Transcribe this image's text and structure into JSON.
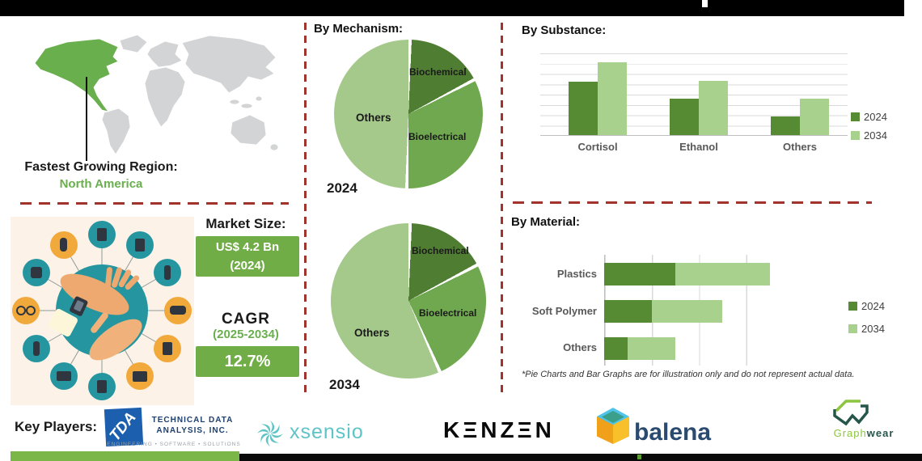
{
  "region": {
    "label": "Fastest Growing Region:",
    "value": "North America"
  },
  "market": {
    "size_label": "Market Size:",
    "size_value": "US$ 4.2 Bn",
    "size_year": "(2024)",
    "cagr_label": "CAGR",
    "cagr_period": "(2025-2034)",
    "cagr_value": "12.7%"
  },
  "sections": {
    "mechanism": "By Mechanism:",
    "substance": "By Substance:",
    "material": "By Material:"
  },
  "footnote": "*Pie Charts and Bar Graphs are for illustration only and do not represent actual data.",
  "key_players": {
    "label": "Key Players:",
    "companies": [
      {
        "name": "Technical Data Analysis, Inc.",
        "monogram": "TDA",
        "line1": "TECHNICAL DATA",
        "line2": "ANALYSIS, INC.",
        "tagline": "ENGINEERING • SOFTWARE • SOLUTIONS"
      },
      {
        "name": "Xsensio",
        "wordmark": "xsensio"
      },
      {
        "name": "Kenzen",
        "wordmark": "KΞNZΞN"
      },
      {
        "name": "Balena",
        "wordmark": "balena"
      },
      {
        "name": "GraphWear",
        "wordmark_part1": "Graph",
        "wordmark_part2": "wear"
      }
    ]
  },
  "chart_data": [
    {
      "id": "mechanism-2024",
      "type": "pie",
      "title": "2024",
      "labels": [
        "Biochemical",
        "Bioelectrical",
        "Others"
      ],
      "values": [
        17,
        33,
        50
      ],
      "colors": [
        "#4f7d32",
        "#6fa84e",
        "#a5c98b"
      ],
      "legend_position": "none"
    },
    {
      "id": "mechanism-2034",
      "type": "pie",
      "title": "2034",
      "labels": [
        "Biochemical",
        "Bioelectrical",
        "Others"
      ],
      "values": [
        17,
        26,
        57
      ],
      "colors": [
        "#4f7d32",
        "#6fa84e",
        "#a5c98b"
      ],
      "legend_position": "none"
    },
    {
      "id": "by-substance",
      "type": "bar",
      "title": "By Substance:",
      "categories": [
        "Cortisol",
        "Ethanol",
        "Others"
      ],
      "series": [
        {
          "name": "2024",
          "color": "#568b34",
          "values": [
            5.2,
            3.6,
            1.8
          ]
        },
        {
          "name": "2034",
          "color": "#a9d18e",
          "values": [
            7.1,
            5.3,
            3.6
          ]
        }
      ],
      "ylim": [
        0,
        8
      ],
      "grid": true,
      "legend_position": "right"
    },
    {
      "id": "by-material",
      "type": "bar-horizontal-stacked",
      "title": "By Material:",
      "categories": [
        "Plastics",
        "Soft Polymer",
        "Others"
      ],
      "series": [
        {
          "name": "2024",
          "color": "#568b34",
          "values": [
            1.5,
            1.0,
            0.5
          ]
        },
        {
          "name": "2034",
          "color": "#a9d18e",
          "values": [
            2.0,
            1.5,
            1.0
          ]
        }
      ],
      "xlim": [
        0,
        4
      ],
      "grid": true,
      "legend_position": "right"
    }
  ],
  "colors": {
    "accent_green": "#71ad47",
    "dark_green": "#4f7d32",
    "light_green": "#a9d18e",
    "dashed_divider_red": "#a0342c",
    "map_highlight": "#6aaf4e",
    "map_base": "#d2d4d6",
    "illustration_teal": "#2596a0",
    "illustration_orange": "#f2a93b",
    "tda_blue": "#1b5fae",
    "xsensio_teal": "#5fc4c6",
    "balena_navy": "#2b4a70",
    "graphwear_light": "#8cc63e",
    "graphwear_dark": "#26564a"
  }
}
